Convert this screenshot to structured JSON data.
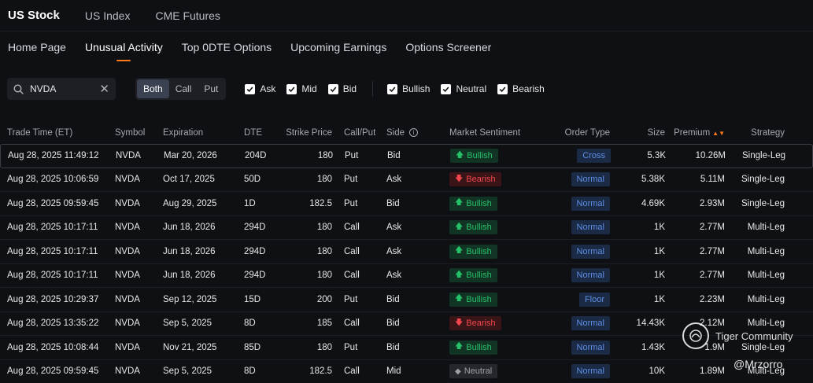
{
  "top_tabs": [
    "US Stock",
    "US Index",
    "CME Futures"
  ],
  "sub_tabs": [
    "Home Page",
    "Unusual Activity",
    "Top 0DTE Options",
    "Upcoming Earnings",
    "Options Screener"
  ],
  "search": {
    "value": "NVDA",
    "clear_icon": "close-icon"
  },
  "option_type": {
    "options": [
      "Both",
      "Call",
      "Put"
    ],
    "selected": "Both"
  },
  "side_filters": [
    "Ask",
    "Mid",
    "Bid"
  ],
  "sentiment_filters": [
    "Bullish",
    "Neutral",
    "Bearish"
  ],
  "columns": {
    "time": "Trade Time (ET)",
    "symbol": "Symbol",
    "expiration": "Expiration",
    "dte": "DTE",
    "strike": "Strike Price",
    "callput": "Call/Put",
    "side": "Side",
    "sentiment": "Market Sentiment",
    "order_type": "Order Type",
    "size": "Size",
    "premium": "Premium",
    "strategy": "Strategy"
  },
  "rows": [
    {
      "time": "Aug 28, 2025 11:49:12",
      "symbol": "NVDA",
      "expiration": "Mar 20, 2026",
      "dte": "204D",
      "strike": "180",
      "callput": "Put",
      "side": "Bid",
      "sentiment": "Bullish",
      "order_type": "Cross",
      "size": "5.3K",
      "premium": "10.26M",
      "strategy": "Single-Leg"
    },
    {
      "time": "Aug 28, 2025 10:06:59",
      "symbol": "NVDA",
      "expiration": "Oct 17, 2025",
      "dte": "50D",
      "strike": "180",
      "callput": "Put",
      "side": "Ask",
      "sentiment": "Bearish",
      "order_type": "Normal",
      "size": "5.38K",
      "premium": "5.11M",
      "strategy": "Single-Leg"
    },
    {
      "time": "Aug 28, 2025 09:59:45",
      "symbol": "NVDA",
      "expiration": "Aug 29, 2025",
      "dte": "1D",
      "strike": "182.5",
      "callput": "Put",
      "side": "Bid",
      "sentiment": "Bullish",
      "order_type": "Normal",
      "size": "4.69K",
      "premium": "2.93M",
      "strategy": "Single-Leg"
    },
    {
      "time": "Aug 28, 2025 10:17:11",
      "symbol": "NVDA",
      "expiration": "Jun 18, 2026",
      "dte": "294D",
      "strike": "180",
      "callput": "Call",
      "side": "Ask",
      "sentiment": "Bullish",
      "order_type": "Normal",
      "size": "1K",
      "premium": "2.77M",
      "strategy": "Multi-Leg"
    },
    {
      "time": "Aug 28, 2025 10:17:11",
      "symbol": "NVDA",
      "expiration": "Jun 18, 2026",
      "dte": "294D",
      "strike": "180",
      "callput": "Call",
      "side": "Ask",
      "sentiment": "Bullish",
      "order_type": "Normal",
      "size": "1K",
      "premium": "2.77M",
      "strategy": "Multi-Leg"
    },
    {
      "time": "Aug 28, 2025 10:17:11",
      "symbol": "NVDA",
      "expiration": "Jun 18, 2026",
      "dte": "294D",
      "strike": "180",
      "callput": "Call",
      "side": "Ask",
      "sentiment": "Bullish",
      "order_type": "Normal",
      "size": "1K",
      "premium": "2.77M",
      "strategy": "Multi-Leg"
    },
    {
      "time": "Aug 28, 2025 10:29:37",
      "symbol": "NVDA",
      "expiration": "Sep 12, 2025",
      "dte": "15D",
      "strike": "200",
      "callput": "Put",
      "side": "Bid",
      "sentiment": "Bullish",
      "order_type": "Floor",
      "size": "1K",
      "premium": "2.23M",
      "strategy": "Multi-Leg"
    },
    {
      "time": "Aug 28, 2025 13:35:22",
      "symbol": "NVDA",
      "expiration": "Sep 5, 2025",
      "dte": "8D",
      "strike": "185",
      "callput": "Call",
      "side": "Bid",
      "sentiment": "Bearish",
      "order_type": "Normal",
      "size": "14.43K",
      "premium": "2.12M",
      "strategy": "Multi-Leg"
    },
    {
      "time": "Aug 28, 2025 10:08:44",
      "symbol": "NVDA",
      "expiration": "Nov 21, 2025",
      "dte": "85D",
      "strike": "180",
      "callput": "Put",
      "side": "Bid",
      "sentiment": "Bullish",
      "order_type": "Normal",
      "size": "1.43K",
      "premium": "1.9M",
      "strategy": "Single-Leg"
    },
    {
      "time": "Aug 28, 2025 09:59:45",
      "symbol": "NVDA",
      "expiration": "Sep 5, 2025",
      "dte": "8D",
      "strike": "182.5",
      "callput": "Call",
      "side": "Mid",
      "sentiment": "Neutral",
      "order_type": "Normal",
      "size": "10K",
      "premium": "1.89M",
      "strategy": "Multi-Leg"
    }
  ],
  "watermark": {
    "brand": "Tiger Community",
    "handle": "@Mrzorro"
  },
  "colors": {
    "accent": "#ff7a1a",
    "bullish": "#26c26a",
    "bearish": "#f2464c",
    "order_type": "#5f8fe6"
  }
}
